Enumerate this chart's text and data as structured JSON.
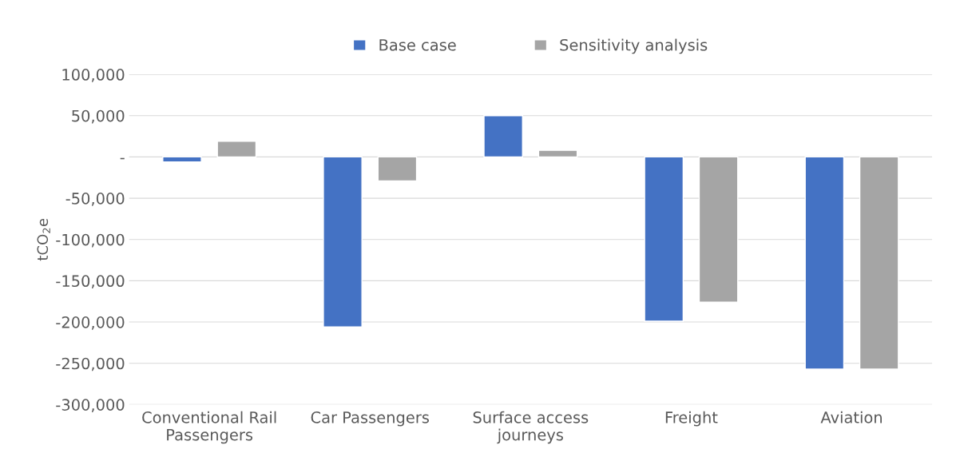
{
  "chart_data": {
    "type": "bar",
    "ylabel": "tCO$_{2}$e",
    "categories": [
      "Conventional Rail\nPassengers",
      "Car Passengers",
      "Surface access\njourneys",
      "Freight",
      "Aviation"
    ],
    "series": [
      {
        "name": "Base case",
        "color": "#4472c4",
        "values": [
          -6000,
          -206000,
          50000,
          -199000,
          -257000
        ]
      },
      {
        "name": "Sensitivity analysis",
        "color": "#a5a5a5",
        "values": [
          19000,
          -29000,
          8000,
          -176000,
          -257000
        ]
      }
    ],
    "ylim": [
      -300000,
      100000
    ],
    "yticks": [
      {
        "value": -300000,
        "label": "-300,000"
      },
      {
        "value": -250000,
        "label": "-250,000"
      },
      {
        "value": -200000,
        "label": "-200,000"
      },
      {
        "value": -150000,
        "label": "-150,000"
      },
      {
        "value": -100000,
        "label": "-100,000"
      },
      {
        "value": -50000,
        "label": "-50,000"
      },
      {
        "value": 0,
        "label": "-"
      },
      {
        "value": 50000,
        "label": "50,000"
      },
      {
        "value": 100000,
        "label": "100,000"
      }
    ],
    "grid": "y",
    "legend": "top"
  }
}
